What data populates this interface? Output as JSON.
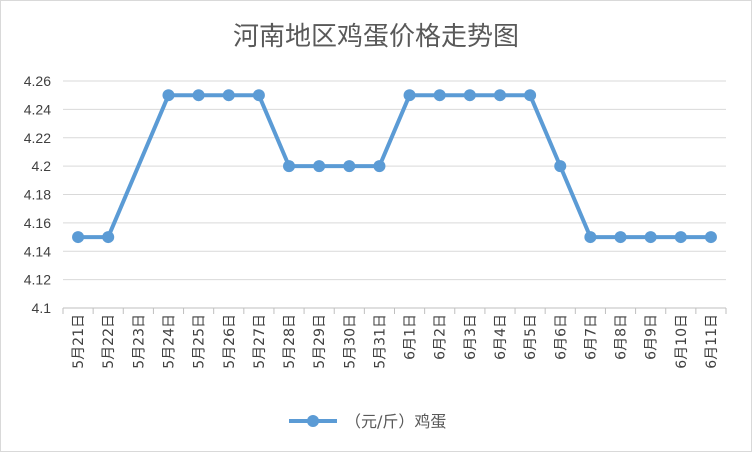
{
  "chart_data": {
    "type": "line",
    "title": "河南地区鸡蛋价格走势图",
    "xlabel": "",
    "ylabel": "",
    "categories": [
      "5月21日",
      "5月22日",
      "5月23日",
      "5月24日",
      "5月25日",
      "5月26日",
      "5月27日",
      "5月28日",
      "5月29日",
      "5月30日",
      "5月31日",
      "6月1日",
      "6月2日",
      "6月3日",
      "6月4日",
      "6月5日",
      "6月6日",
      "6月7日",
      "6月8日",
      "6月9日",
      "6月10日",
      "6月11日"
    ],
    "series": [
      {
        "name": "（元/斤）鸡蛋",
        "color": "#5b9bd5",
        "values": [
          4.15,
          4.15,
          null,
          4.25,
          4.25,
          4.25,
          4.25,
          4.2,
          4.2,
          4.2,
          4.2,
          4.25,
          4.25,
          4.25,
          4.25,
          4.25,
          4.2,
          4.15,
          4.15,
          4.15,
          4.15,
          4.15
        ]
      }
    ],
    "ylim": [
      4.1,
      4.26
    ],
    "yticks": [
      "4.1",
      "4.12",
      "4.14",
      "4.16",
      "4.18",
      "4.2",
      "4.22",
      "4.24",
      "4.26"
    ],
    "grid": true,
    "legend": "bottom"
  }
}
